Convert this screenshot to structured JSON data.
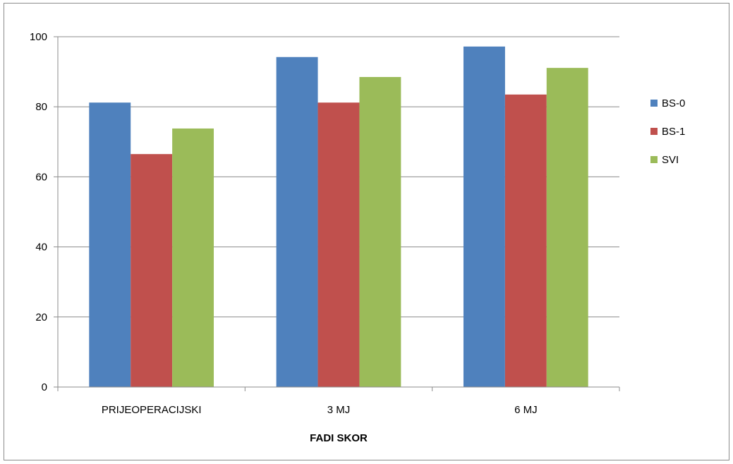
{
  "chart_data": {
    "type": "bar",
    "title": "",
    "xlabel": "FADI SKOR",
    "ylabel": "",
    "categories": [
      "PRIJEOPERACIJSKI",
      "3 MJ",
      "6 MJ"
    ],
    "series": [
      {
        "name": "BS-0",
        "values": [
          81.2,
          94.2,
          97.2
        ],
        "color": "#4f81bd"
      },
      {
        "name": "BS-1",
        "values": [
          66.5,
          81.2,
          83.5
        ],
        "color": "#c0504d"
      },
      {
        "name": "SVI",
        "values": [
          73.8,
          88.5,
          91.1
        ],
        "color": "#9bbb59"
      }
    ],
    "ylim": [
      0,
      100
    ],
    "yticks": [
      0,
      20,
      40,
      60,
      80,
      100
    ],
    "grid": true,
    "legend_position": "right"
  }
}
